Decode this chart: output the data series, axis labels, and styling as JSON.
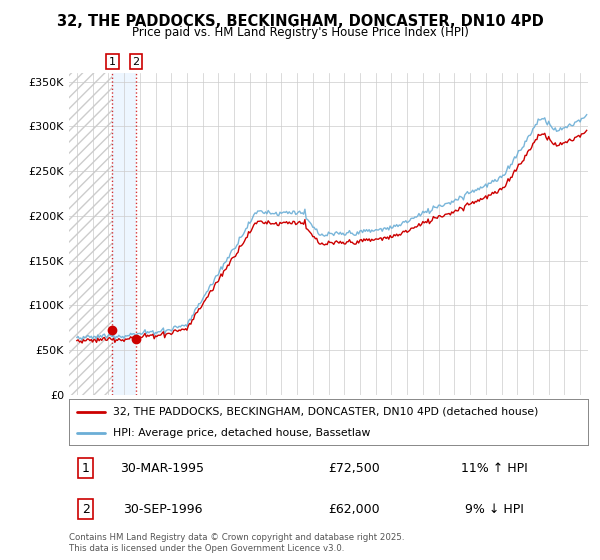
{
  "title": "32, THE PADDOCKS, BECKINGHAM, DONCASTER, DN10 4PD",
  "subtitle": "Price paid vs. HM Land Registry's House Price Index (HPI)",
  "legend_line1": "32, THE PADDOCKS, BECKINGHAM, DONCASTER, DN10 4PD (detached house)",
  "legend_line2": "HPI: Average price, detached house, Bassetlaw",
  "footnote": "Contains HM Land Registry data © Crown copyright and database right 2025.\nThis data is licensed under the Open Government Licence v3.0.",
  "sale1_date": "30-MAR-1995",
  "sale1_price": 72500,
  "sale1_label": "11% ↑ HPI",
  "sale2_date": "30-SEP-1996",
  "sale2_price": 62000,
  "sale2_label": "9% ↓ HPI",
  "sale1_x": 1995.25,
  "sale2_x": 1996.75,
  "ylim_max": 360000,
  "xlim_min": 1992.5,
  "xlim_max": 2025.5,
  "hpi_color": "#6baed6",
  "price_color": "#cc0000",
  "shade_color": "#ddeeff",
  "hatch_color": "#cccccc",
  "background_color": "#ffffff",
  "grid_color": "#cccccc"
}
